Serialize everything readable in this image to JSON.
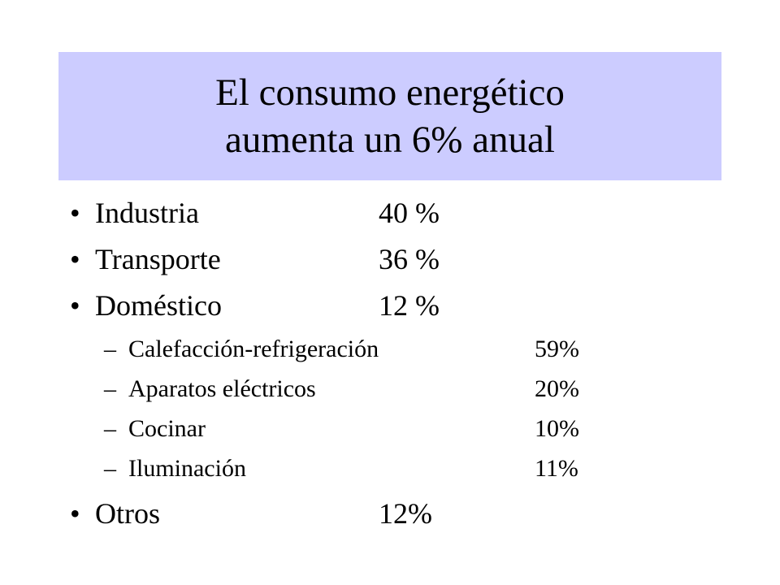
{
  "title": {
    "line1": "El consumo energético",
    "line2": "aumenta un 6% anual"
  },
  "bullet_glyph": "•",
  "dash_glyph": "–",
  "items": [
    {
      "label": "Industria",
      "value": "40 %"
    },
    {
      "label": "Transporte",
      "value": "36 %"
    },
    {
      "label": "Doméstico",
      "value": "12 %"
    }
  ],
  "subitems": [
    {
      "label": "Calefacción-refrigeración",
      "value": "59%"
    },
    {
      "label": "Aparatos eléctricos",
      "value": "20%"
    },
    {
      "label": "Cocinar",
      "value": "10%"
    },
    {
      "label": "Iluminación",
      "value": "11%"
    }
  ],
  "last_item": {
    "label": "Otros",
    "value": "12%"
  },
  "colors": {
    "title_background": "#ccccff",
    "text": "#000000",
    "background": "#ffffff"
  }
}
